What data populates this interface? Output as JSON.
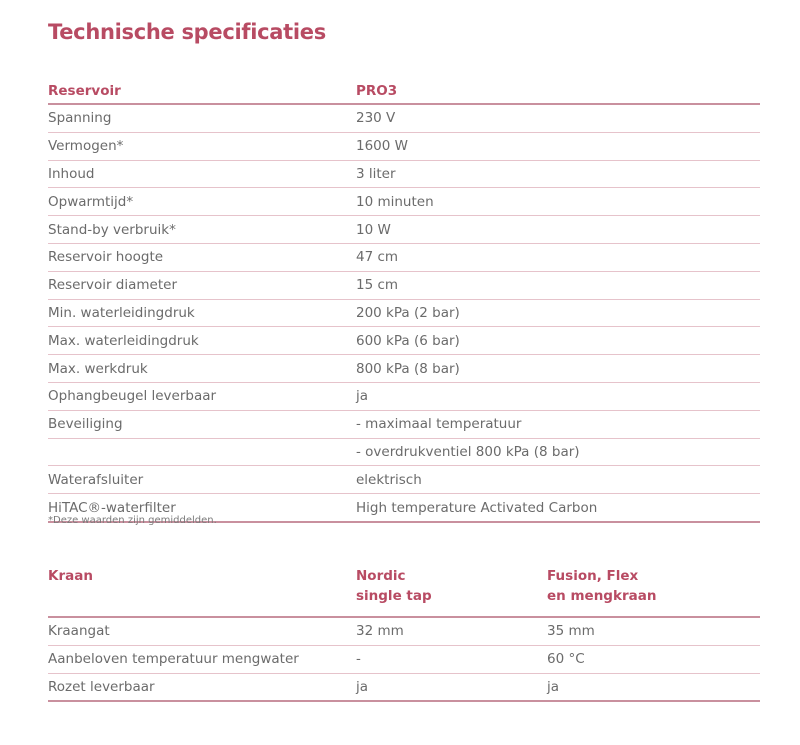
{
  "title": "Technische specificaties",
  "reservoir": {
    "headers": [
      "Reservoir",
      "PRO3"
    ],
    "rows": [
      [
        "Spanning",
        "230 V"
      ],
      [
        "Vermogen*",
        "1600 W"
      ],
      [
        "Inhoud",
        "3 liter"
      ],
      [
        "Opwarmtijd*",
        "10 minuten"
      ],
      [
        "Stand-by verbruik*",
        "10 W"
      ],
      [
        "Reservoir hoogte",
        "47 cm"
      ],
      [
        "Reservoir diameter",
        "15 cm"
      ],
      [
        "Min. waterleidingdruk",
        "200 kPa (2 bar)"
      ],
      [
        "Max. waterleidingdruk",
        "600 kPa (6 bar)"
      ],
      [
        "Max. werkdruk",
        "800 kPa (8 bar)"
      ],
      [
        "Ophangbeugel leverbaar",
        "ja"
      ],
      [
        "Beveiliging",
        "- maximaal temperatuur"
      ],
      [
        "",
        "- overdrukventiel 800 kPa (8 bar)"
      ],
      [
        "Waterafsluiter",
        "elektrisch"
      ],
      [
        "HiTAC®-waterfilter",
        "High temperature Activated Carbon"
      ]
    ]
  },
  "footnote": "*Deze waarden zijn gemiddelden.",
  "kraan": {
    "headers": [
      "Kraan",
      "Nordic\nsingle tap",
      "Fusion, Flex\nen mengkraan"
    ],
    "rows": [
      [
        "Kraangat",
        "32 mm",
        "35 mm"
      ],
      [
        "Aanbeloven temperatuur mengwater",
        "-",
        "60 °C"
      ],
      [
        "Rozet leverbaar",
        "ja",
        "ja"
      ]
    ]
  },
  "colors": {
    "accent": "#b84b63",
    "text": "#6b6b6b",
    "rule": "#e6c3cb"
  }
}
